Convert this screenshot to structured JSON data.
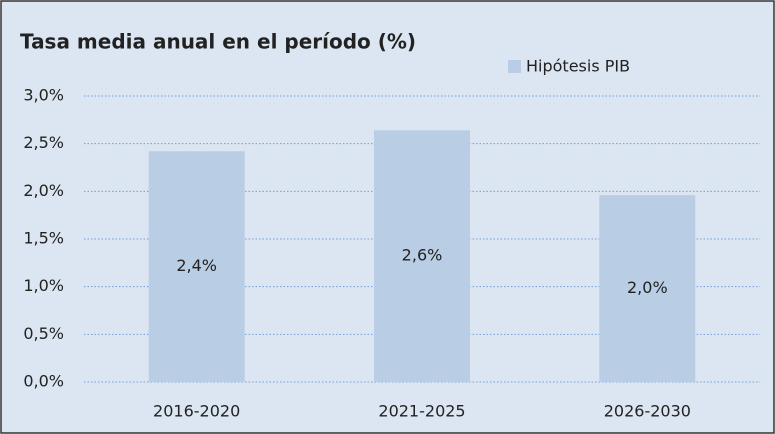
{
  "chart_data": {
    "type": "bar",
    "title": "Tasa media anual  en el período (%)",
    "categories": [
      "2016-2020",
      "2021-2025",
      "2026-2030"
    ],
    "series": [
      {
        "name": "Hipótesis PIB",
        "color": "#b9cde5",
        "values": [
          2.42,
          2.64,
          1.96
        ],
        "value_labels": [
          "2,4%",
          "2,6%",
          "2,0%"
        ]
      }
    ],
    "ylim": [
      0,
      3
    ],
    "yticks": [
      {
        "value": 0,
        "label": "0,0%"
      },
      {
        "value": 0.5,
        "label": "0,5%"
      },
      {
        "value": 1,
        "label": "1,0%"
      },
      {
        "value": 1.5,
        "label": "1,5%"
      },
      {
        "value": 2,
        "label": "2,0%"
      },
      {
        "value": 2.5,
        "label": "2,5%"
      },
      {
        "value": 3,
        "label": "3,0%"
      }
    ],
    "grid": true,
    "legend": "top-right"
  }
}
